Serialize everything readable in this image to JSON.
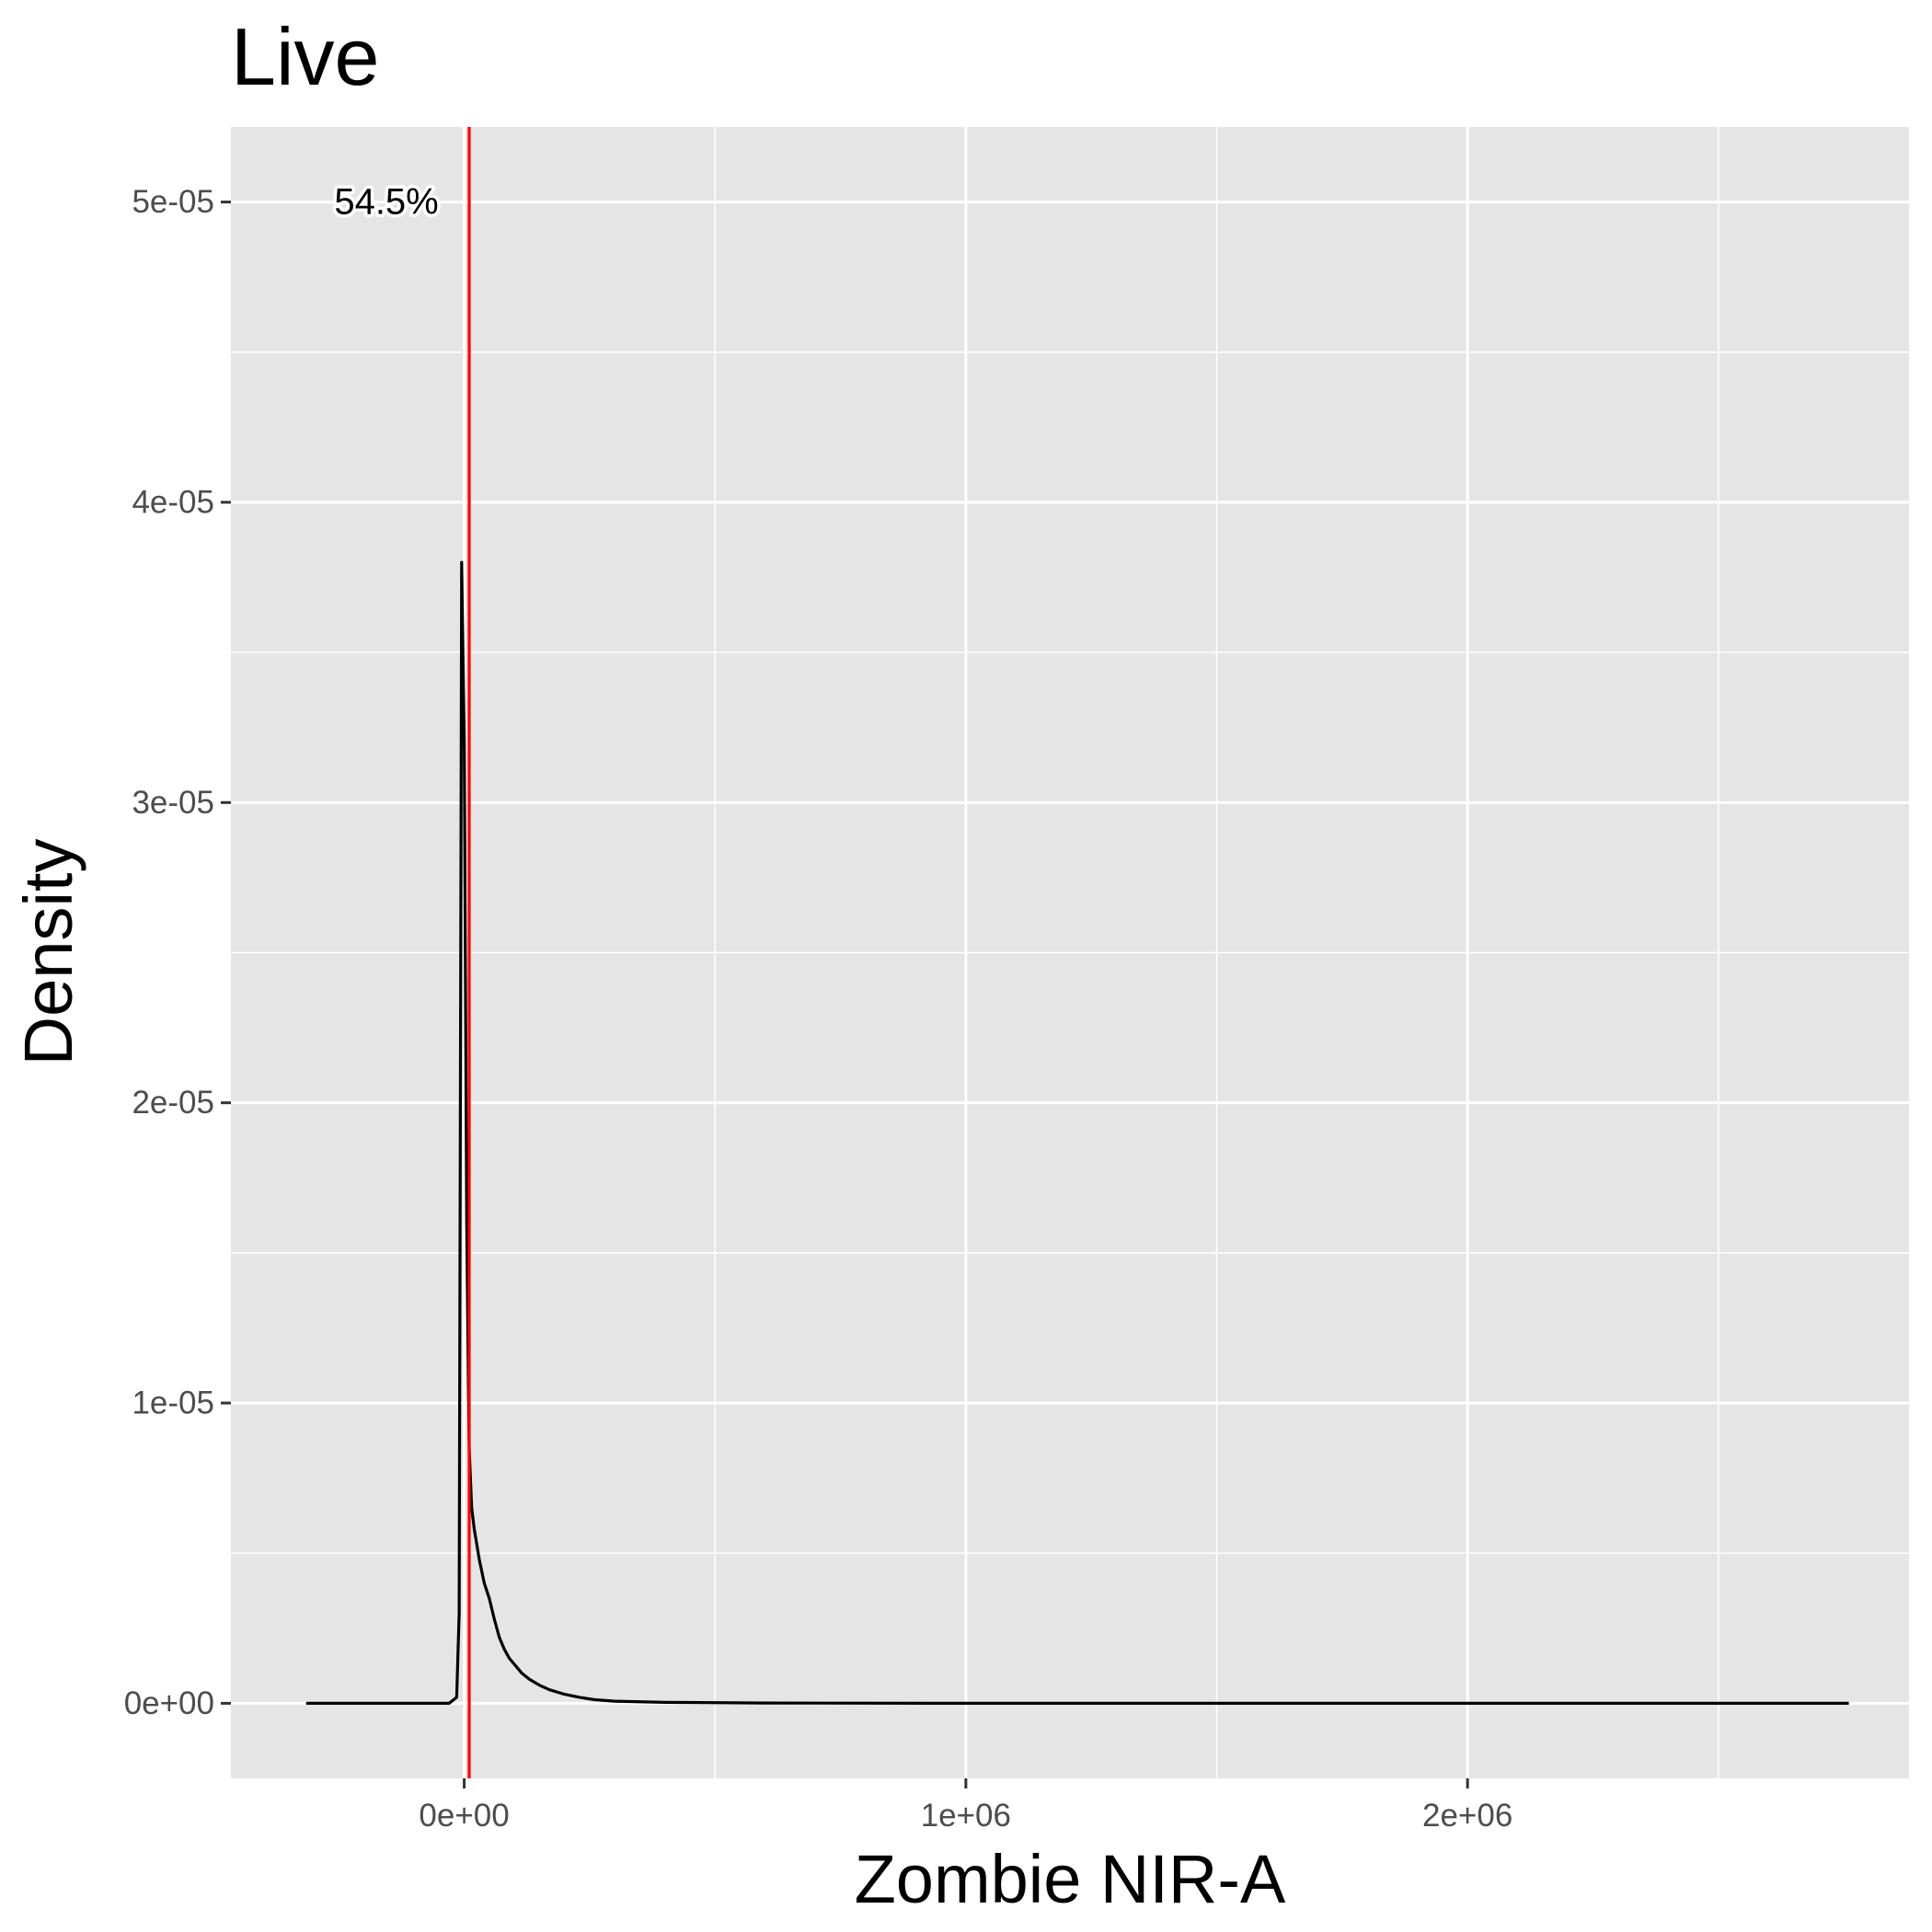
{
  "chart_data": {
    "type": "line",
    "title": "Live",
    "xlabel": "Zombie NIR-A",
    "ylabel": "Density",
    "xlim": [
      -465000,
      2880000
    ],
    "ylim": [
      -2.5e-06,
      5.25e-05
    ],
    "x_ticks": [
      {
        "value": 0,
        "label": "0e+00"
      },
      {
        "value": 1000000,
        "label": "1e+06"
      },
      {
        "value": 2000000,
        "label": "2e+06"
      }
    ],
    "x_minor_ticks": [
      500000,
      1500000,
      2500000
    ],
    "y_ticks": [
      {
        "value": 0,
        "label": "0e+00"
      },
      {
        "value": 1e-05,
        "label": "1e-05"
      },
      {
        "value": 2e-05,
        "label": "2e-05"
      },
      {
        "value": 3e-05,
        "label": "3e-05"
      },
      {
        "value": 4e-05,
        "label": "4e-05"
      },
      {
        "value": 5e-05,
        "label": "5e-05"
      }
    ],
    "y_minor_ticks": [
      5e-06,
      1.5e-05,
      2.5e-05,
      3.5e-05,
      4.5e-05
    ],
    "grid": true,
    "background": "#e5e5e5",
    "gridline_color": "#ffffff",
    "series": [
      {
        "color": "#000000",
        "x": [
          -315000,
          -200000,
          -100000,
          -30000,
          -15000,
          -10000,
          -5000,
          0,
          5000,
          10000,
          15000,
          20000,
          25000,
          30000,
          40000,
          50000,
          60000,
          70000,
          80000,
          90000,
          100000,
          115000,
          130000,
          150000,
          170000,
          200000,
          230000,
          260000,
          300000,
          400000,
          600000,
          1000000,
          1500000,
          2000000,
          2450000,
          2760000
        ],
        "y": [
          0,
          0,
          0,
          0,
          2e-07,
          3e-06,
          3.8e-05,
          3.2e-05,
          1.6e-05,
          8.5e-06,
          6.5e-06,
          5.8e-06,
          5.3e-06,
          4.8e-06,
          4e-06,
          3.5e-06,
          2.8e-06,
          2.2e-06,
          1.8e-06,
          1.5e-06,
          1.3e-06,
          1e-06,
          8e-07,
          6e-07,
          4.5e-07,
          3e-07,
          2e-07,
          1.2e-07,
          7e-08,
          3e-08,
          1e-08,
          0,
          0,
          0,
          0,
          0
        ]
      }
    ],
    "vline": {
      "x": 10000,
      "color": "#ff0000"
    },
    "annotations": [
      {
        "text": "54.5%",
        "x": -155000,
        "y": 5e-05
      }
    ]
  }
}
